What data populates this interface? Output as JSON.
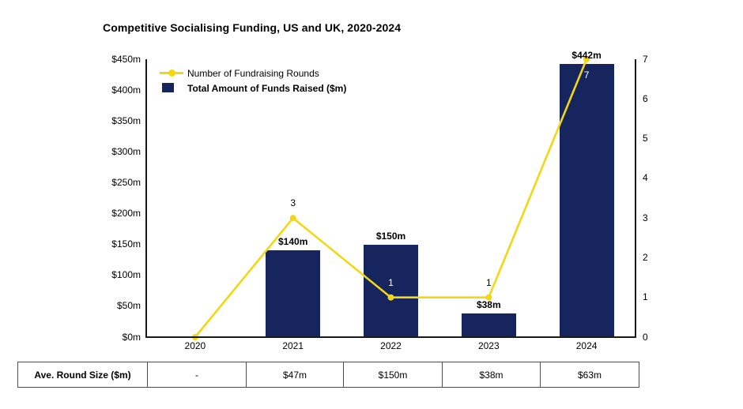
{
  "title": "Competitive Socialising Funding, US and UK, 2020-2024",
  "chart_data": {
    "type": "bar+line combo",
    "title": "Competitive Socialising Funding, US and UK, 2020-2024",
    "categories": [
      "2020",
      "2021",
      "2022",
      "2023",
      "2024"
    ],
    "series": [
      {
        "name": "Number of Fundraising Rounds",
        "type": "line",
        "axis": "right",
        "values": [
          0,
          3,
          1,
          1,
          7
        ],
        "color": "#F2D712",
        "point_labels": [
          "",
          "3",
          "1",
          "1",
          "7"
        ],
        "point_label_colors": [
          "#000000",
          "#000000",
          "#FFFFFF",
          "#000000",
          "#FFFFFF"
        ],
        "point_label_positions": [
          "above",
          "above",
          "above",
          "above",
          "below"
        ]
      },
      {
        "name": "Total Amount of Funds Raised ($m)",
        "type": "bar",
        "axis": "left",
        "values": [
          0,
          140,
          150,
          38,
          442
        ],
        "color": "#16255E",
        "bar_labels": [
          "",
          "$140m",
          "$150m",
          "$38m",
          "$442m"
        ]
      }
    ],
    "left_axis": {
      "ticks": [
        "$450m",
        "$400m",
        "$350m",
        "$300m",
        "$250m",
        "$200m",
        "$150m",
        "$100m",
        "$50m",
        "$0m"
      ],
      "min": 0,
      "max": 450
    },
    "right_axis": {
      "ticks": [
        "7",
        "6",
        "5",
        "4",
        "3",
        "2",
        "1",
        "0"
      ],
      "min": 0,
      "max": 7
    },
    "grid": false,
    "legend_position": "top-left-inside"
  },
  "table": {
    "row_label": "Ave. Round Size ($m)",
    "values": [
      "-",
      "$47m",
      "$150m",
      "$38m",
      "$63m"
    ]
  },
  "colors": {
    "bar": "#16255E",
    "line": "#F2D712",
    "axis": "#1A1A1A",
    "table_border": "#4D4D4D",
    "text": "#000000",
    "overlay_label": "#FFFFFF"
  }
}
